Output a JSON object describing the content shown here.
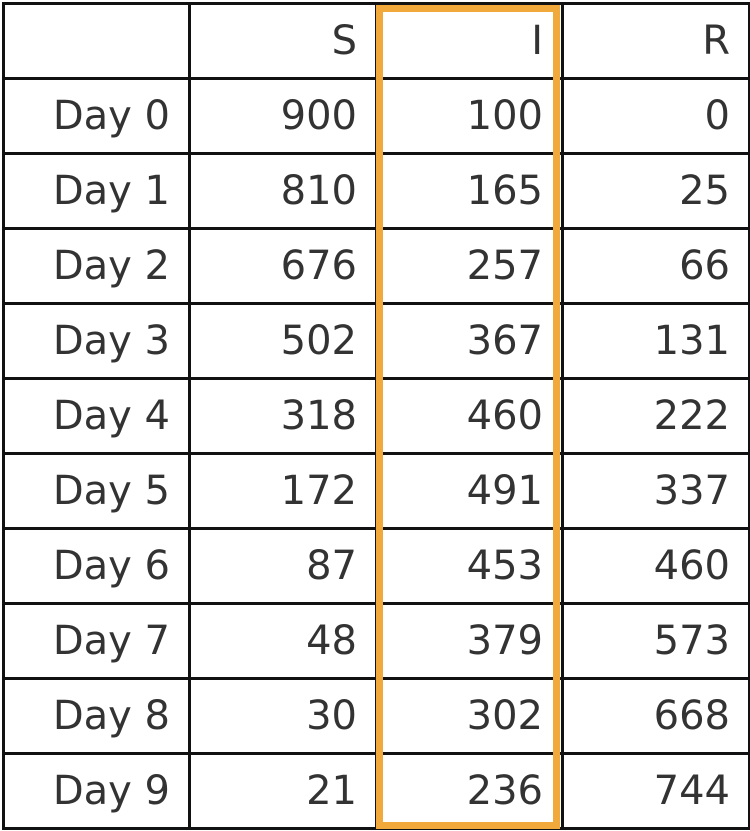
{
  "chart_data": {
    "type": "table",
    "columns": [
      "",
      "S",
      "I",
      "R"
    ],
    "rows": [
      {
        "label": "Day 0",
        "values": [
          900,
          100,
          0
        ]
      },
      {
        "label": "Day 1",
        "values": [
          810,
          165,
          25
        ]
      },
      {
        "label": "Day 2",
        "values": [
          676,
          257,
          66
        ]
      },
      {
        "label": "Day 3",
        "values": [
          502,
          367,
          131
        ]
      },
      {
        "label": "Day 4",
        "values": [
          318,
          460,
          222
        ]
      },
      {
        "label": "Day 5",
        "values": [
          172,
          491,
          337
        ]
      },
      {
        "label": "Day 6",
        "values": [
          87,
          453,
          460
        ]
      },
      {
        "label": "Day 7",
        "values": [
          48,
          379,
          573
        ]
      },
      {
        "label": "Day 8",
        "values": [
          30,
          302,
          668
        ]
      },
      {
        "label": "Day 9",
        "values": [
          21,
          236,
          744
        ]
      }
    ],
    "highlighted_column": "I",
    "highlight_color": "#f0a93a",
    "text_color": "#333333",
    "border_color": "#111111"
  }
}
